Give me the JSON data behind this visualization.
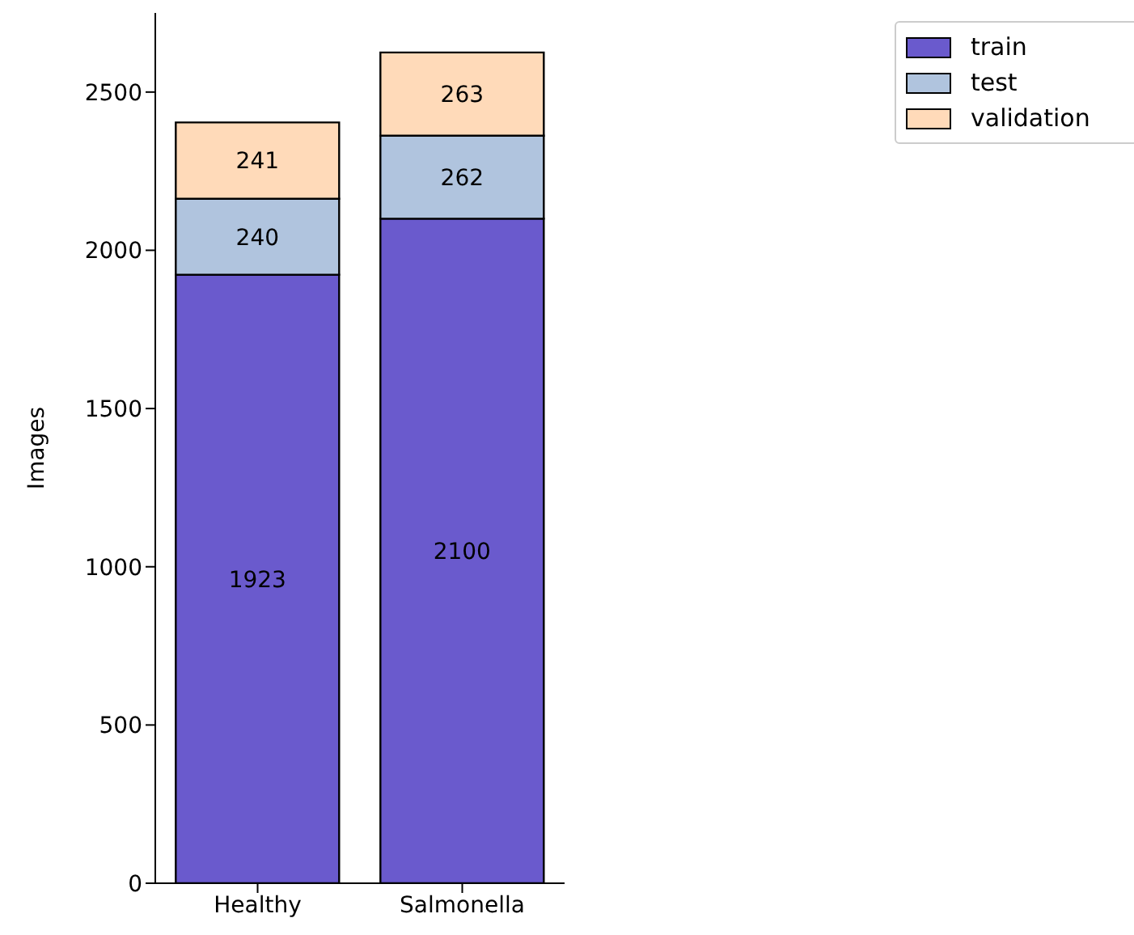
{
  "chart_data": {
    "type": "bar",
    "stacked": true,
    "ylabel": "Images",
    "categories": [
      "Healthy",
      "Salmonella"
    ],
    "series": [
      {
        "name": "train",
        "color": "#6a5acd",
        "values": [
          1923,
          2100
        ]
      },
      {
        "name": "test",
        "color": "#b0c4de",
        "values": [
          240,
          262
        ]
      },
      {
        "name": "validation",
        "color": "#ffdab9",
        "values": [
          241,
          263
        ]
      }
    ],
    "ylim": [
      0,
      2750
    ],
    "yticks": [
      0,
      500,
      1000,
      1500,
      2000,
      2500
    ],
    "data_labels": true,
    "legend": "top right",
    "grid": false
  }
}
